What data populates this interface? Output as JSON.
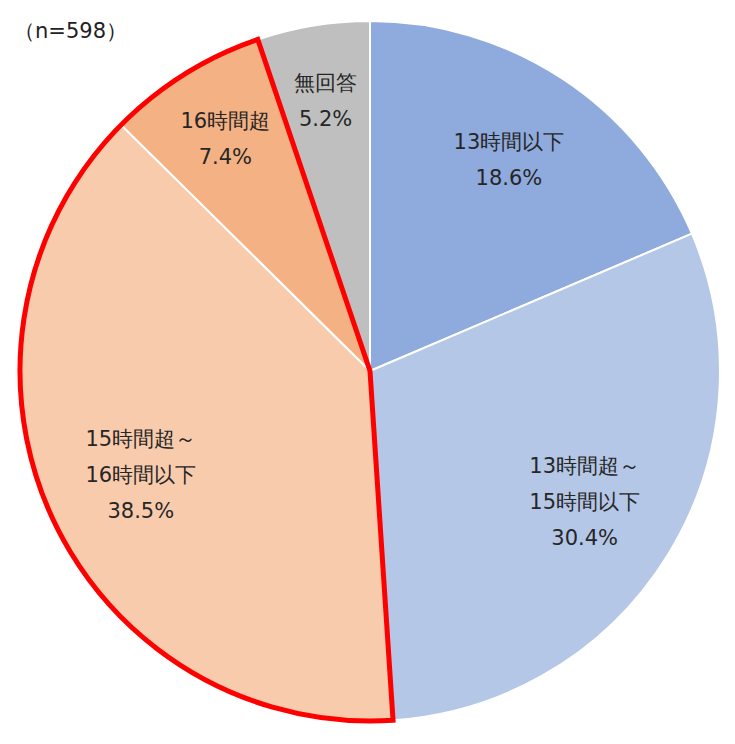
{
  "chart_data": {
    "type": "pie",
    "subtitle": "（n=598）",
    "categories": [
      "13時間以下",
      "13時間超～15時間以下",
      "15時間超～16時間以下",
      "16時間超",
      "無回答"
    ],
    "values": [
      18.6,
      30.4,
      38.5,
      7.4,
      5.2
    ],
    "value_labels": [
      "18.6%",
      "30.4%",
      "38.5%",
      "7.4%",
      "5.2%"
    ],
    "colors": [
      "#8faadc",
      "#b4c7e7",
      "#f8cbad",
      "#f4b183",
      "#bfbfbf"
    ],
    "data_labels": true
  }
}
